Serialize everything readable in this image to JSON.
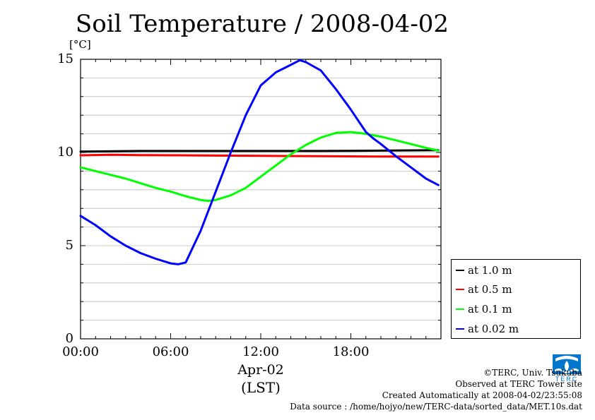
{
  "chart_data": {
    "type": "line",
    "title": "Soil Temperature / 2008-04-02",
    "ylabel": "[°C]",
    "xlabel": "Apr-02",
    "xlabel_sub": "(LST)",
    "ylim": [
      0,
      15
    ],
    "xlim": [
      0,
      24
    ],
    "yticks": [
      "0",
      "5",
      "10",
      "15"
    ],
    "xticks": [
      {
        "value": 0,
        "label": "00:00"
      },
      {
        "value": 6,
        "label": "06:00"
      },
      {
        "value": 12,
        "label": "12:00"
      },
      {
        "value": 18,
        "label": "18:00"
      }
    ],
    "grid": true,
    "legend_position": "right-bottom",
    "series": [
      {
        "name": "at 1.0 m",
        "color": "#000000",
        "x": [
          0,
          4,
          8,
          12,
          16,
          20,
          23.83
        ],
        "y": [
          10.05,
          10.08,
          10.08,
          10.08,
          10.08,
          10.1,
          10.12
        ]
      },
      {
        "name": "at 0.5 m",
        "color": "#ff0000",
        "x": [
          0,
          2,
          4,
          8,
          12,
          16,
          20,
          23.83
        ],
        "y": [
          9.85,
          9.88,
          9.86,
          9.84,
          9.82,
          9.8,
          9.78,
          9.78
        ]
      },
      {
        "name": "at 0.1 m",
        "color": "#00ff00",
        "x": [
          0,
          1,
          2,
          3,
          4,
          5,
          6,
          7,
          8,
          8.5,
          9,
          10,
          11,
          12,
          13,
          14,
          15,
          16,
          17,
          18,
          19,
          20,
          21,
          22,
          23,
          23.83
        ],
        "y": [
          9.2,
          9.0,
          8.8,
          8.6,
          8.35,
          8.1,
          7.9,
          7.65,
          7.45,
          7.4,
          7.45,
          7.7,
          8.1,
          8.7,
          9.3,
          9.9,
          10.4,
          10.8,
          11.05,
          11.1,
          11.0,
          10.85,
          10.65,
          10.45,
          10.25,
          10.1
        ]
      },
      {
        "name": "at 0.02 m",
        "color": "#0000ff",
        "x": [
          0,
          1,
          2,
          3,
          4,
          5,
          6,
          6.5,
          7,
          8,
          9,
          10,
          11,
          11.5,
          12,
          13,
          14,
          14.6,
          15,
          16,
          17,
          18,
          19,
          19.5,
          20,
          21,
          22,
          23,
          23.83
        ],
        "y": [
          6.6,
          6.1,
          5.5,
          5.0,
          4.6,
          4.3,
          4.05,
          4.0,
          4.1,
          5.8,
          7.9,
          10.0,
          12.0,
          12.8,
          13.6,
          14.3,
          14.7,
          14.95,
          14.85,
          14.4,
          13.4,
          12.3,
          11.1,
          10.75,
          10.45,
          9.8,
          9.2,
          8.6,
          8.25
        ]
      }
    ]
  },
  "credits": {
    "copyright": "©TERC, Univ. Tsukuba",
    "observed": "Observed at TERC Tower site",
    "created": "Created Automatically at 2008-04-02/23:55:08",
    "source": "Data source : /home/hojyo/new/TERC-data/sorted_data/MET.10s.dat"
  },
  "logo": {
    "text": "TERC",
    "color": "#0077cc"
  }
}
